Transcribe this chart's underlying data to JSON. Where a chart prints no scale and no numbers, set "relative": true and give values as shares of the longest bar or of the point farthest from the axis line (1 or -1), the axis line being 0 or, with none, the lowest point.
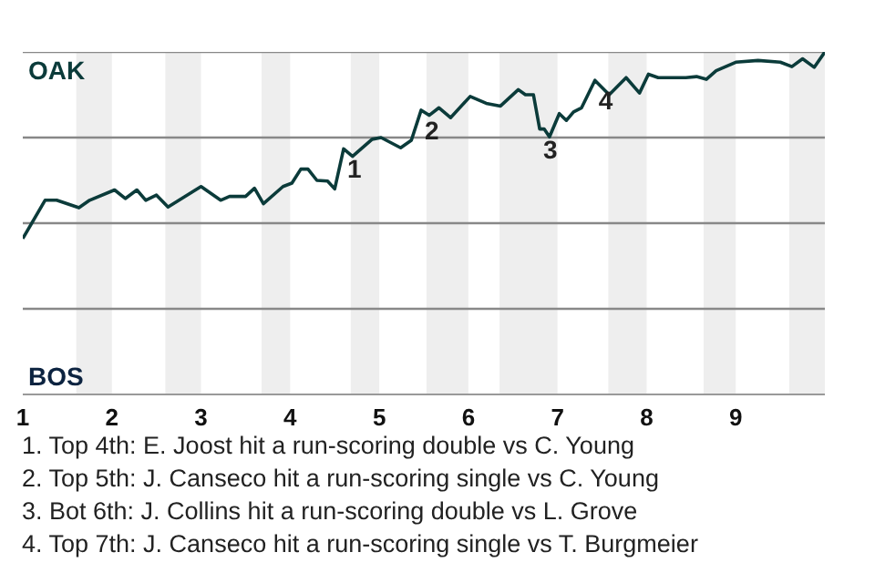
{
  "chart_data": {
    "type": "line",
    "relative": true,
    "xlim": [
      1,
      10
    ],
    "xticks": [
      1,
      2,
      3,
      4,
      5,
      6,
      7,
      8,
      9
    ],
    "ref_lines": [
      {
        "axis": "y",
        "value": 0.25,
        "color": "#888888"
      },
      {
        "axis": "y",
        "value": 0.5,
        "color": "#888888"
      },
      {
        "axis": "y",
        "value": 0.75,
        "color": "#888888"
      },
      {
        "axis": "y",
        "value": 1,
        "color": "#888888"
      }
    ],
    "bands": [
      {
        "axis": "x",
        "from": 1.6,
        "to": 2,
        "color": "#eeeeee"
      },
      {
        "axis": "x",
        "from": 2.6,
        "to": 3,
        "color": "#eeeeee"
      },
      {
        "axis": "x",
        "from": 3.68,
        "to": 4,
        "color": "#eeeeee"
      },
      {
        "axis": "x",
        "from": 4.68,
        "to": 5,
        "color": "#eeeeee"
      },
      {
        "axis": "x",
        "from": 5.53,
        "to": 6,
        "color": "#eeeeee"
      },
      {
        "axis": "x",
        "from": 6.35,
        "to": 7,
        "color": "#eeeeee"
      },
      {
        "axis": "x",
        "from": 7.57,
        "to": 8,
        "color": "#eeeeee"
      },
      {
        "axis": "x",
        "from": 8.64,
        "to": 9,
        "color": "#eeeeee"
      },
      {
        "axis": "x",
        "from": 9.6,
        "to": 10,
        "color": "#eeeeee"
      }
    ],
    "series": [
      {
        "color": "#0b3b3a",
        "x": [
          1.0,
          1.25,
          1.38,
          1.63,
          1.75,
          2.03,
          2.15,
          2.28,
          2.38,
          2.5,
          2.63,
          3.0,
          3.22,
          3.32,
          3.5,
          3.6,
          3.7,
          3.92,
          4.02,
          4.12,
          4.2,
          4.3,
          4.42,
          4.5,
          4.6,
          4.7,
          4.92,
          5.02,
          5.24,
          5.36,
          5.47,
          5.56,
          5.67,
          5.8,
          6.02,
          6.2,
          6.36,
          6.56,
          6.64,
          6.73,
          6.8,
          6.85,
          6.91,
          7.02,
          7.1,
          7.18,
          7.27,
          7.42,
          7.58,
          7.77,
          7.92,
          8.02,
          8.13,
          8.44,
          8.56,
          8.67,
          8.78,
          9.0,
          9.25,
          9.5,
          9.63,
          9.75,
          9.88,
          10.0
        ],
        "values": [
          0.455,
          0.567,
          0.567,
          0.545,
          0.567,
          0.597,
          0.572,
          0.597,
          0.567,
          0.582,
          0.547,
          0.607,
          0.567,
          0.578,
          0.578,
          0.602,
          0.557,
          0.607,
          0.617,
          0.658,
          0.658,
          0.625,
          0.623,
          0.6,
          0.717,
          0.695,
          0.745,
          0.75,
          0.72,
          0.742,
          0.83,
          0.815,
          0.837,
          0.808,
          0.87,
          0.85,
          0.842,
          0.89,
          0.875,
          0.875,
          0.775,
          0.775,
          0.752,
          0.82,
          0.8,
          0.825,
          0.837,
          0.917,
          0.875,
          0.925,
          0.88,
          0.935,
          0.925,
          0.925,
          0.928,
          0.92,
          0.945,
          0.97,
          0.975,
          0.97,
          0.957,
          0.98,
          0.955,
          1.0
        ]
      }
    ],
    "annotations": [
      "OAK",
      "BOS",
      {
        "text": "1",
        "x": 4.6,
        "y": 0.717
      },
      {
        "text": "2",
        "x": 5.47,
        "y": 0.83
      },
      {
        "text": "3",
        "x": 6.8,
        "y": 0.775
      },
      {
        "text": "4",
        "x": 7.42,
        "y": 0.917
      },
      "1. Top 4th: E. Joost hit a run-scoring double vs C. Young",
      "2. Top 5th: J. Canseco hit a run-scoring single vs C. Young",
      "3. Bot 6th: J. Collins hit a run-scoring double vs L. Grove",
      "4. Top 7th: J. Canseco hit a run-scoring single vs T. Burgmeier"
    ]
  }
}
